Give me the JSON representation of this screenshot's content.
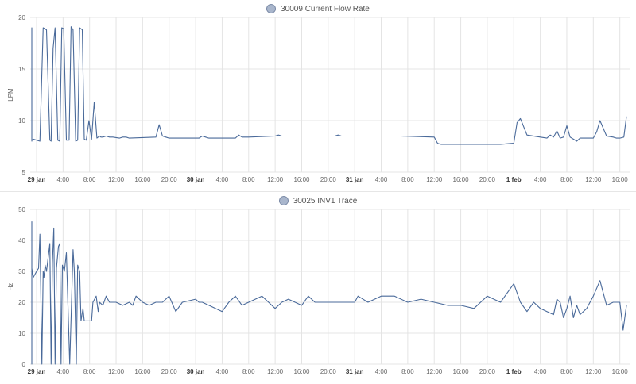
{
  "chart_data": [
    {
      "type": "line",
      "title": "30009 Current Flow Rate",
      "ylabel": "LPM",
      "ylim": [
        5,
        20
      ],
      "yticks": [
        5,
        10,
        15,
        20
      ],
      "grid": true,
      "legend_position": "top-center",
      "series_color": "#4a6a9a",
      "xlim": [
        0,
        89
      ],
      "x_unit": "hours since 29 jan 00:00",
      "xticks": [
        {
          "x": 0,
          "label": "29 jan",
          "bold": true
        },
        {
          "x": 4,
          "label": "4:00"
        },
        {
          "x": 8,
          "label": "8:00"
        },
        {
          "x": 12,
          "label": "12:00"
        },
        {
          "x": 16,
          "label": "16:00"
        },
        {
          "x": 20,
          "label": "20:00"
        },
        {
          "x": 24,
          "label": "30 jan",
          "bold": true
        },
        {
          "x": 28,
          "label": "4:00"
        },
        {
          "x": 32,
          "label": "8:00"
        },
        {
          "x": 36,
          "label": "12:00"
        },
        {
          "x": 40,
          "label": "16:00"
        },
        {
          "x": 44,
          "label": "20:00"
        },
        {
          "x": 48,
          "label": "31 jan",
          "bold": true
        },
        {
          "x": 52,
          "label": "4:00"
        },
        {
          "x": 56,
          "label": "8:00"
        },
        {
          "x": 60,
          "label": "12:00"
        },
        {
          "x": 64,
          "label": "16:00"
        },
        {
          "x": 68,
          "label": "20:00"
        },
        {
          "x": 72,
          "label": "1 feb",
          "bold": true
        },
        {
          "x": 76,
          "label": "4:00"
        },
        {
          "x": 80,
          "label": "8:00"
        },
        {
          "x": 84,
          "label": "12:00"
        },
        {
          "x": 88,
          "label": "16:00"
        }
      ],
      "series": [
        {
          "x": [
            -1.8,
            -1.7,
            -1.5,
            -1.3,
            -1.1,
            -0.9,
            -0.7,
            -0.5,
            0.0,
            0.5,
            1.0,
            1.5,
            2.0,
            2.2,
            2.5,
            2.8,
            3.2,
            3.5,
            3.8,
            4.1,
            4.5,
            4.9,
            5.2,
            5.5,
            5.9,
            6.2,
            6.5,
            6.9,
            7.2,
            7.5,
            7.9,
            8.3,
            8.7,
            9.1,
            9.5,
            9.7,
            10.0,
            10.5,
            11.0,
            11.5,
            12.5,
            13.0,
            13.5,
            14.0,
            18.0,
            18.5,
            19.0,
            19.5,
            20.0,
            24.0,
            24.5,
            25.0,
            25.5,
            26.0,
            30.0,
            30.5,
            31.0,
            32.0,
            36.0,
            36.5,
            37.0,
            40.0,
            45.0,
            45.5,
            46.0,
            50.0,
            55.0,
            60.0,
            60.5,
            61.0,
            64.0,
            68.0,
            70.0,
            72.0,
            72.5,
            73.0,
            74.0,
            76.0,
            77.0,
            77.5,
            78.0,
            78.5,
            79.0,
            79.5,
            80.0,
            80.5,
            81.0,
            81.5,
            82.0,
            84.0,
            84.5,
            85.0,
            86.0,
            87.0,
            87.5,
            88.0,
            88.6,
            89.0
          ],
          "y": [
            8.4,
            18.9,
            19.0,
            17.8,
            8.1,
            8.0,
            8.1,
            8.2,
            8.1,
            8.0,
            19.0,
            18.8,
            8.1,
            8.0,
            17.0,
            19.0,
            8.1,
            8.0,
            19.0,
            18.9,
            8.1,
            8.1,
            19.1,
            18.8,
            8.0,
            8.1,
            19.0,
            18.8,
            8.2,
            8.1,
            10.0,
            8.2,
            11.8,
            8.3,
            8.5,
            8.4,
            8.4,
            8.5,
            8.4,
            8.4,
            8.3,
            8.4,
            8.4,
            8.3,
            8.4,
            9.6,
            8.5,
            8.4,
            8.3,
            8.3,
            8.3,
            8.5,
            8.4,
            8.3,
            8.3,
            8.6,
            8.4,
            8.4,
            8.5,
            8.6,
            8.5,
            8.5,
            8.5,
            8.6,
            8.5,
            8.5,
            8.5,
            8.4,
            7.8,
            7.7,
            7.7,
            7.7,
            7.7,
            7.8,
            9.8,
            10.2,
            8.6,
            8.4,
            8.3,
            8.6,
            8.4,
            9.0,
            8.3,
            8.4,
            9.5,
            8.4,
            8.2,
            8.0,
            8.3,
            8.3,
            8.9,
            10.0,
            8.5,
            8.4,
            8.3,
            8.3,
            8.4,
            10.4
          ]
        }
      ]
    },
    {
      "type": "line",
      "title": "30025 INV1 Trace",
      "ylabel": "Hz",
      "ylim": [
        0,
        50
      ],
      "yticks": [
        0,
        10,
        20,
        30,
        40,
        50
      ],
      "grid": true,
      "legend_position": "top-center",
      "series_color": "#4a6a9a",
      "xlim": [
        0,
        89
      ],
      "x_unit": "hours since 29 jan 00:00",
      "xticks": [
        {
          "x": 0,
          "label": "29 jan",
          "bold": true
        },
        {
          "x": 4,
          "label": "4:00"
        },
        {
          "x": 8,
          "label": "8:00"
        },
        {
          "x": 12,
          "label": "12:00"
        },
        {
          "x": 16,
          "label": "16:00"
        },
        {
          "x": 20,
          "label": "20:00"
        },
        {
          "x": 24,
          "label": "30 jan",
          "bold": true
        },
        {
          "x": 28,
          "label": "4:00"
        },
        {
          "x": 32,
          "label": "8:00"
        },
        {
          "x": 36,
          "label": "12:00"
        },
        {
          "x": 40,
          "label": "16:00"
        },
        {
          "x": 44,
          "label": "20:00"
        },
        {
          "x": 48,
          "label": "31 jan",
          "bold": true
        },
        {
          "x": 52,
          "label": "4:00"
        },
        {
          "x": 56,
          "label": "8:00"
        },
        {
          "x": 60,
          "label": "12:00"
        },
        {
          "x": 64,
          "label": "16:00"
        },
        {
          "x": 68,
          "label": "20:00"
        },
        {
          "x": 72,
          "label": "1 feb",
          "bold": true
        },
        {
          "x": 76,
          "label": "4:00"
        },
        {
          "x": 80,
          "label": "8:00"
        },
        {
          "x": 84,
          "label": "12:00"
        },
        {
          "x": 88,
          "label": "16:00"
        }
      ],
      "series": [
        {
          "x": [
            -1.8,
            -1.7,
            -1.5,
            -1.3,
            -1.2,
            -1.1,
            -1.0,
            -0.8,
            -0.5,
            0.0,
            0.3,
            0.5,
            0.8,
            1.0,
            1.1,
            1.3,
            1.5,
            2.0,
            2.2,
            2.4,
            2.6,
            2.8,
            3.0,
            3.3,
            3.5,
            3.7,
            3.9,
            4.2,
            4.5,
            5.0,
            5.5,
            5.7,
            6.0,
            6.2,
            6.5,
            6.7,
            7.0,
            7.2,
            7.5,
            8.0,
            8.3,
            8.5,
            9.0,
            9.3,
            9.5,
            10.0,
            10.5,
            11.0,
            11.5,
            12.0,
            13.0,
            14.0,
            14.5,
            15.0,
            16.0,
            17.0,
            18.0,
            18.5,
            19.0,
            20.0,
            21.0,
            22.0,
            24.0,
            24.5,
            25.0,
            26.0,
            28.0,
            29.0,
            30.0,
            31.0,
            32.0,
            34.0,
            36.0,
            37.0,
            38.0,
            40.0,
            41.0,
            42.0,
            44.0,
            48.0,
            48.5,
            50.0,
            52.0,
            54.0,
            56.0,
            58.0,
            60.0,
            62.0,
            64.0,
            66.0,
            68.0,
            70.0,
            72.0,
            73.0,
            74.0,
            75.0,
            76.0,
            77.0,
            78.0,
            78.5,
            79.0,
            79.5,
            80.0,
            80.5,
            81.0,
            81.5,
            82.0,
            83.0,
            84.0,
            85.0,
            86.0,
            87.0,
            88.0,
            88.5,
            89.0
          ],
          "y": [
            26,
            0,
            37,
            46,
            0,
            36,
            30,
            31,
            28,
            30,
            31,
            42,
            0,
            30,
            28,
            32,
            30,
            39,
            0,
            33,
            44,
            0,
            31,
            38,
            39,
            0,
            32,
            30,
            36,
            0,
            37,
            30,
            0,
            32,
            30,
            14,
            18,
            14,
            14,
            14,
            14,
            20,
            22,
            17,
            20,
            19,
            22,
            20,
            20,
            20,
            19,
            20,
            19,
            22,
            20,
            19,
            20,
            20,
            20,
            22,
            17,
            20,
            21,
            20,
            20,
            19,
            17,
            20,
            22,
            19,
            20,
            22,
            18,
            20,
            21,
            19,
            22,
            20,
            20,
            20,
            22,
            20,
            22,
            22,
            20,
            21,
            20,
            19,
            19,
            18,
            22,
            20,
            26,
            20,
            17,
            20,
            18,
            17,
            16,
            21,
            20,
            15,
            18,
            22,
            15,
            19,
            16,
            18,
            22,
            27,
            19,
            20,
            20,
            11,
            19
          ]
        }
      ]
    }
  ]
}
